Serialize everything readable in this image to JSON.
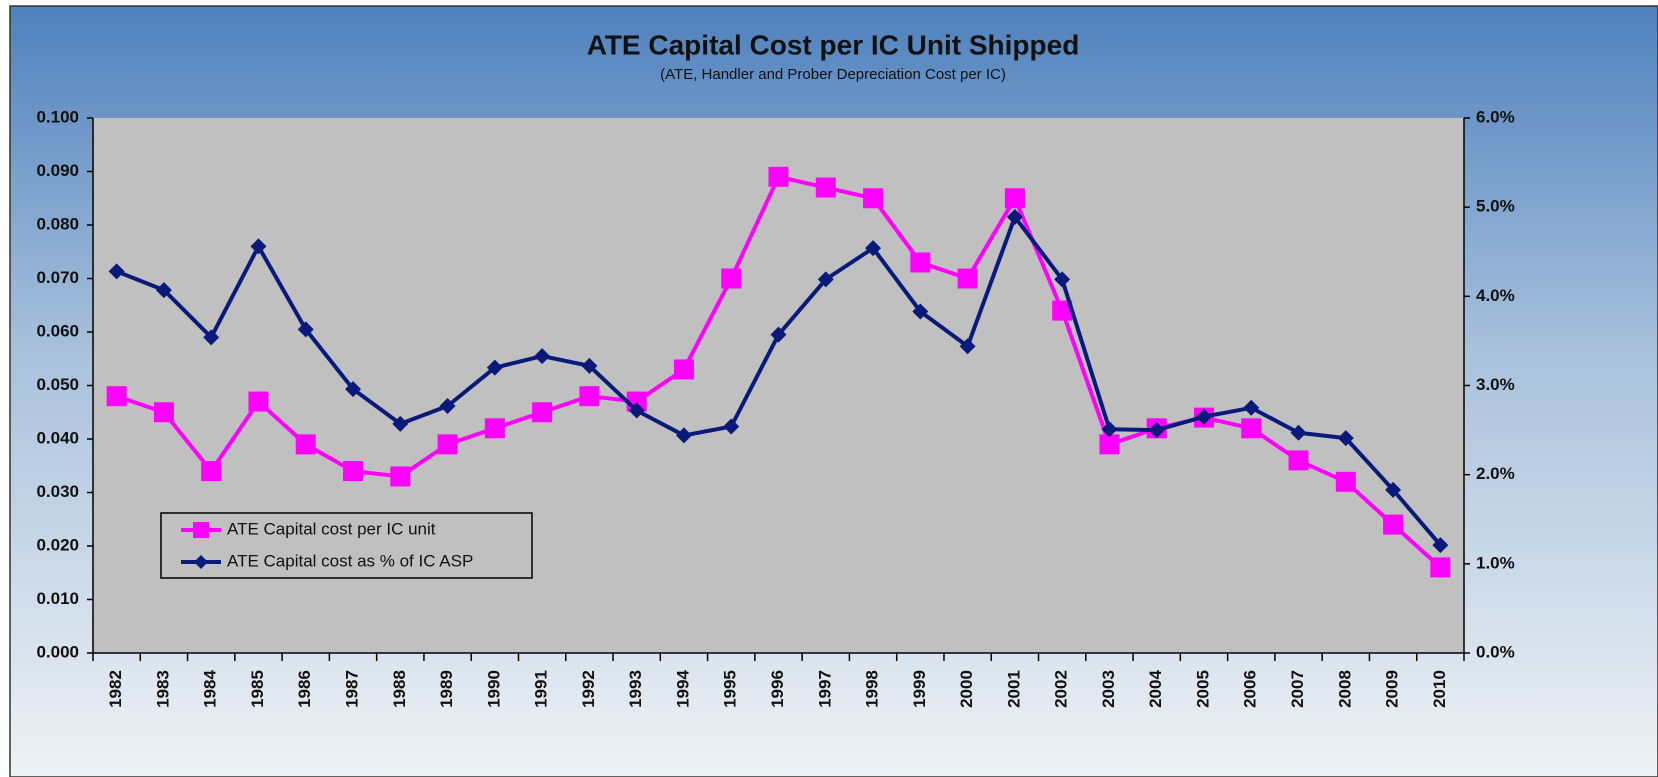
{
  "chart_data": {
    "type": "line",
    "title": "ATE Capital Cost per IC Unit Shipped",
    "subtitle": "(ATE, Handler and Prober Depreciation Cost per IC)",
    "categories": [
      "1982",
      "1983",
      "1984",
      "1985",
      "1986",
      "1987",
      "1988",
      "1989",
      "1990",
      "1991",
      "1992",
      "1993",
      "1994",
      "1995",
      "1996",
      "1997",
      "1998",
      "1999",
      "2000",
      "2001",
      "2002",
      "2003",
      "2004",
      "2005",
      "2006",
      "2007",
      "2008",
      "2009",
      "2010"
    ],
    "series": [
      {
        "name": "ATE Capital cost per IC unit",
        "color": "#ff00ff",
        "marker": "square",
        "values": [
          0.048,
          0.045,
          0.034,
          0.047,
          0.039,
          0.034,
          0.033,
          0.039,
          0.042,
          0.045,
          0.048,
          0.047,
          0.053,
          0.07,
          0.089,
          0.087,
          0.085,
          0.073,
          0.07,
          0.085,
          0.064,
          0.039,
          0.042,
          0.044,
          0.042,
          0.036,
          0.032,
          0.024,
          0.016
        ]
      },
      {
        "name": "ATE Capital cost as % of IC ASP",
        "color": "#0a1a7a",
        "marker": "diamond",
        "axis": "y2",
        "values": [
          4.28,
          4.07,
          3.54,
          4.56,
          3.63,
          2.96,
          2.57,
          2.77,
          3.2,
          3.33,
          3.22,
          2.72,
          2.44,
          2.54,
          3.57,
          4.19,
          4.54,
          3.83,
          3.44,
          4.89,
          4.19,
          2.51,
          2.5,
          2.65,
          2.75,
          2.47,
          2.41,
          1.83,
          1.21
        ]
      }
    ],
    "ylim": [
      0,
      0.1
    ],
    "yticks": [
      {
        "value": 0,
        "label": "0.000"
      },
      {
        "value": 0.01,
        "label": "0.010"
      },
      {
        "value": 0.02,
        "label": "0.020"
      },
      {
        "value": 0.03,
        "label": "0.030"
      },
      {
        "value": 0.04,
        "label": "0.040"
      },
      {
        "value": 0.05,
        "label": "0.050"
      },
      {
        "value": 0.06,
        "label": "0.060"
      },
      {
        "value": 0.07,
        "label": "0.070"
      },
      {
        "value": 0.08,
        "label": "0.080"
      },
      {
        "value": 0.09,
        "label": "0.090"
      },
      {
        "value": 0.1,
        "label": "0.100"
      }
    ],
    "y2lim": [
      0,
      6
    ],
    "y2ticks": [
      {
        "value": 0,
        "label": "0.0%"
      },
      {
        "value": 1,
        "label": "1.0%"
      },
      {
        "value": 2,
        "label": "2.0%"
      },
      {
        "value": 3,
        "label": "3.0%"
      },
      {
        "value": 4,
        "label": "4.0%"
      },
      {
        "value": 5,
        "label": "5.0%"
      },
      {
        "value": 6,
        "label": "6.0%"
      }
    ],
    "legend": "lower-left"
  }
}
